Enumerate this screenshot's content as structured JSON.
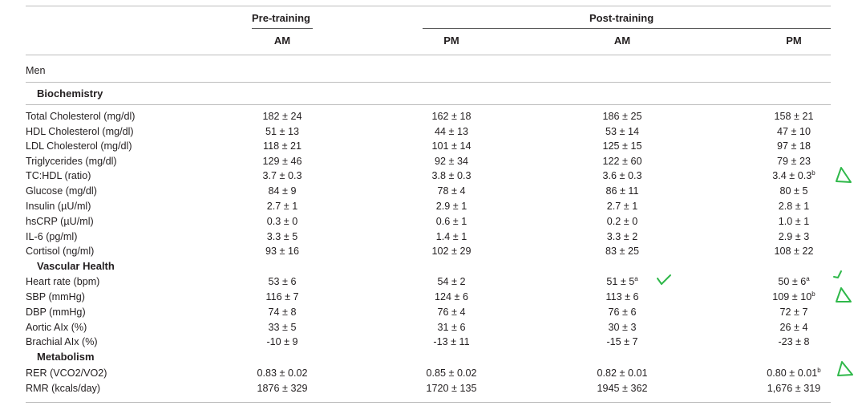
{
  "header": {
    "pre_training": "Pre-training",
    "post_training": "Post-training",
    "columns": [
      "AM",
      "PM",
      "AM",
      "PM"
    ]
  },
  "group_label": "Men",
  "sections": {
    "biochemistry": "Biochemistry",
    "vascular": "Vascular Health",
    "metabolism": "Metabolism"
  },
  "rows": [
    {
      "label": "Total Cholesterol (mg/dl)",
      "v": [
        {
          "t": "182 ± 24"
        },
        {
          "t": "162 ± 18"
        },
        {
          "t": "186 ± 25"
        },
        {
          "t": "158 ± 21"
        }
      ]
    },
    {
      "label": "HDL Cholesterol (mg/dl)",
      "v": [
        {
          "t": "51 ± 13"
        },
        {
          "t": "44 ± 13"
        },
        {
          "t": "53 ± 14"
        },
        {
          "t": "47 ± 10"
        }
      ]
    },
    {
      "label": "LDL Cholesterol (mg/dl)",
      "v": [
        {
          "t": "118 ± 21"
        },
        {
          "t": "101 ± 14"
        },
        {
          "t": "125 ± 15"
        },
        {
          "t": "97 ± 18"
        }
      ]
    },
    {
      "label": "Triglycerides (mg/dl)",
      "v": [
        {
          "t": "129 ± 46"
        },
        {
          "t": "92 ± 34"
        },
        {
          "t": "122 ± 60"
        },
        {
          "t": "79 ± 23"
        }
      ]
    },
    {
      "label": "TC:HDL (ratio)",
      "v": [
        {
          "t": "3.7 ± 0.3"
        },
        {
          "t": "3.8 ± 0.3"
        },
        {
          "t": "3.6 ± 0.3"
        },
        {
          "t": "3.4 ± 0.3",
          "sup": "b"
        }
      ]
    },
    {
      "label": "Glucose (mg/dl)",
      "v": [
        {
          "t": "84 ± 9"
        },
        {
          "t": "78 ± 4"
        },
        {
          "t": "86 ± 11"
        },
        {
          "t": "80 ± 5"
        }
      ]
    },
    {
      "label": "Insulin (µU/ml)",
      "v": [
        {
          "t": "2.7 ± 1"
        },
        {
          "t": "2.9 ± 1"
        },
        {
          "t": "2.7 ± 1"
        },
        {
          "t": "2.8 ± 1"
        }
      ]
    },
    {
      "label": "hsCRP (µU/ml)",
      "v": [
        {
          "t": "0.3 ± 0"
        },
        {
          "t": "0.6 ± 1"
        },
        {
          "t": "0.2 ± 0"
        },
        {
          "t": "1.0 ± 1"
        }
      ]
    },
    {
      "label": "IL-6 (pg/ml)",
      "v": [
        {
          "t": "3.3 ± 5"
        },
        {
          "t": "1.4 ± 1"
        },
        {
          "t": "3.3 ± 2"
        },
        {
          "t": "2.9 ± 3"
        }
      ]
    },
    {
      "label": "Cortisol (ng/ml)",
      "v": [
        {
          "t": "93 ± 16"
        },
        {
          "t": "102 ± 29"
        },
        {
          "t": "83 ± 25"
        },
        {
          "t": "108 ± 22"
        }
      ]
    },
    {
      "label": "Heart rate (bpm)",
      "v": [
        {
          "t": "53 ± 6"
        },
        {
          "t": "54 ± 2"
        },
        {
          "t": "51 ± 5",
          "sup": "a"
        },
        {
          "t": "50 ± 6",
          "sup": "a"
        }
      ]
    },
    {
      "label": "SBP (mmHg)",
      "v": [
        {
          "t": "116 ± 7"
        },
        {
          "t": "124 ± 6"
        },
        {
          "t": "113 ± 6"
        },
        {
          "t": "109 ± 10",
          "sup": "b"
        }
      ]
    },
    {
      "label": "DBP (mmHg)",
      "v": [
        {
          "t": "74 ± 8"
        },
        {
          "t": "76 ± 4"
        },
        {
          "t": "76 ± 6"
        },
        {
          "t": "72 ± 7"
        }
      ]
    },
    {
      "label": "Aortic AIx (%)",
      "v": [
        {
          "t": "33 ± 5"
        },
        {
          "t": "31 ± 6"
        },
        {
          "t": "30 ± 3"
        },
        {
          "t": "26 ± 4"
        }
      ]
    },
    {
      "label": "Brachial AIx (%)",
      "v": [
        {
          "t": "-10 ± 9"
        },
        {
          "t": "-13 ± 11"
        },
        {
          "t": "-15 ± 7"
        },
        {
          "t": "-23 ± 8"
        }
      ]
    },
    {
      "label": "RER (VCO2/VO2)",
      "v": [
        {
          "t": "0.83 ± 0.02"
        },
        {
          "t": "0.85 ± 0.02"
        },
        {
          "t": "0.82 ± 0.01"
        },
        {
          "t": "0.80 ± 0.01",
          "sup": "b"
        }
      ]
    },
    {
      "label": "RMR (kcals/day)",
      "v": [
        {
          "t": "1876 ± 329"
        },
        {
          "t": "1720 ± 135"
        },
        {
          "t": "1945 ± 362"
        },
        {
          "t": "1,676 ± 319"
        }
      ]
    }
  ],
  "annotations": {
    "color": "#2fb84a",
    "marks": [
      {
        "type": "triangle",
        "row": "TC:HDL (ratio)"
      },
      {
        "type": "check",
        "row": "Heart rate (bpm)"
      },
      {
        "type": "check",
        "row": "Heart rate (bpm)"
      },
      {
        "type": "triangle",
        "row": "SBP (mmHg)"
      },
      {
        "type": "triangle",
        "row": "RER (VCO2/VO2)"
      }
    ]
  }
}
